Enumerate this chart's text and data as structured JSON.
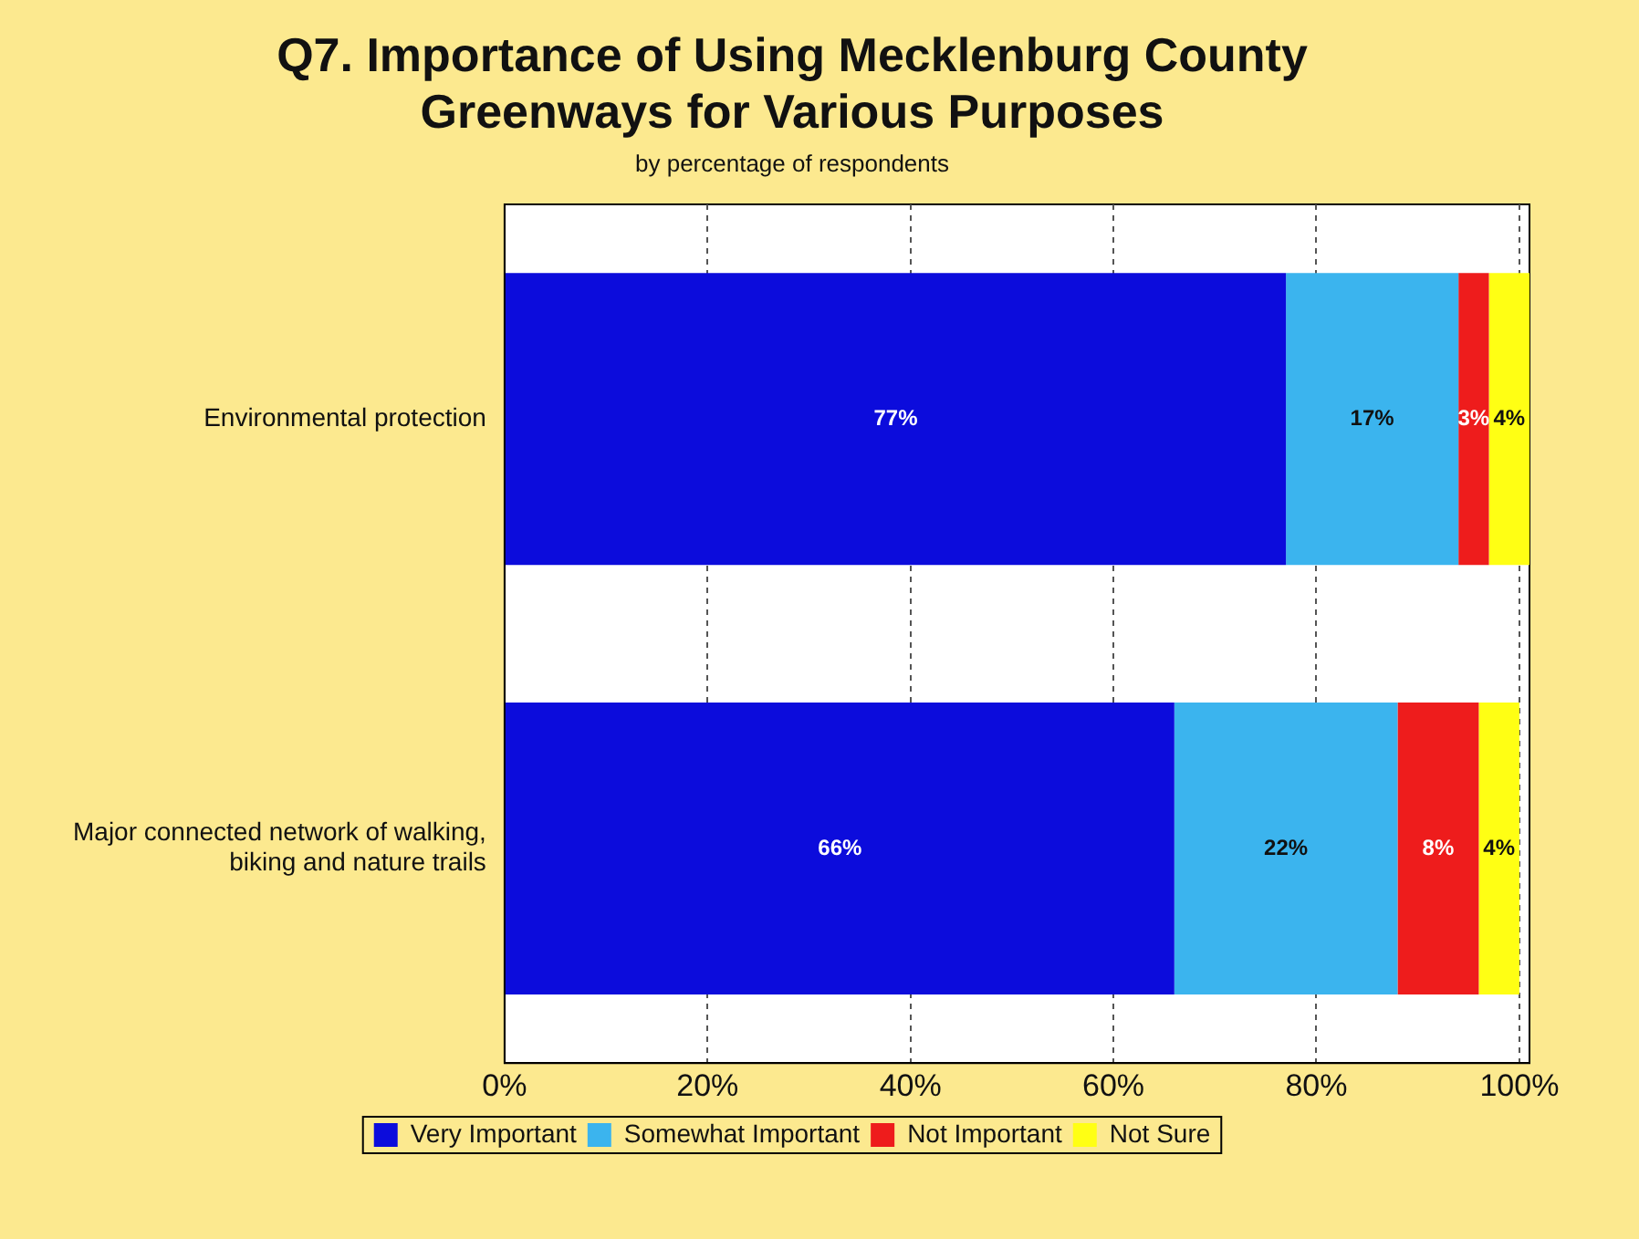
{
  "chart_data": {
    "type": "bar",
    "orientation": "horizontal",
    "stacked": true,
    "title": "Q7. Importance of Using Mecklenburg County Greenways for Various Purposes",
    "subtitle": "by percentage of respondents",
    "categories": [
      "Environmental protection",
      "Major connected network of walking, biking and nature trails"
    ],
    "series": [
      {
        "name": "Very Important",
        "color": "#0c0cdc",
        "values": [
          77,
          66
        ],
        "value_labels": [
          "77%",
          "66%"
        ]
      },
      {
        "name": "Somewhat Important",
        "color": "#3bb4ee",
        "values": [
          17,
          22
        ],
        "value_labels": [
          "17%",
          "22%"
        ]
      },
      {
        "name": "Not Important",
        "color": "#ee1c1c",
        "values": [
          3,
          8
        ],
        "value_labels": [
          "3%",
          "8%"
        ]
      },
      {
        "name": "Not Sure",
        "color": "#ffff14",
        "values": [
          4,
          4
        ],
        "value_labels": [
          "4%",
          "4%"
        ]
      }
    ],
    "xlim": [
      0,
      101
    ],
    "xticks": [
      {
        "value": 0,
        "label": "0%"
      },
      {
        "value": 20,
        "label": "20%"
      },
      {
        "value": 40,
        "label": "40%"
      },
      {
        "value": 60,
        "label": "60%"
      },
      {
        "value": 80,
        "label": "80%"
      },
      {
        "value": 100,
        "label": "100%"
      }
    ],
    "grid": "x",
    "legend": "bottom"
  }
}
